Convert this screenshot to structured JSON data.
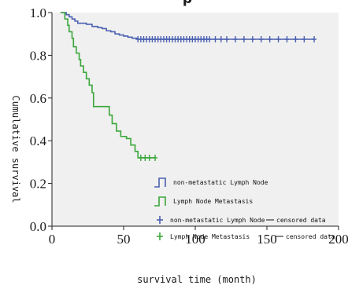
{
  "chart_data": {
    "type": "line",
    "title": "",
    "top_text_fragment": "p",
    "xlabel": "survival time (month)",
    "ylabel": "Cumulative survival",
    "xlim": [
      0,
      200
    ],
    "ylim": [
      0.0,
      1.0
    ],
    "x_ticks": [
      "0",
      "50",
      "100",
      "150",
      "200"
    ],
    "y_ticks": [
      "0.0",
      "0.2",
      "0.4",
      "0.6",
      "0.8",
      "1.0"
    ],
    "grid": false,
    "plot_background": "#f0f0f0",
    "legend_position": "bottom-right",
    "series": [
      {
        "name": "non-metastatic Lymph Node",
        "color": "#4a5fb0",
        "steps": [
          [
            6,
            1.0
          ],
          [
            10,
            0.99
          ],
          [
            12,
            0.98
          ],
          [
            14,
            0.97
          ],
          [
            16,
            0.96
          ],
          [
            18,
            0.95
          ],
          [
            24,
            0.945
          ],
          [
            28,
            0.935
          ],
          [
            32,
            0.93
          ],
          [
            35,
            0.925
          ],
          [
            38,
            0.915
          ],
          [
            41,
            0.91
          ],
          [
            44,
            0.9
          ],
          [
            47,
            0.895
          ],
          [
            50,
            0.89
          ],
          [
            53,
            0.885
          ],
          [
            56,
            0.88
          ],
          [
            60,
            0.875
          ],
          [
            183,
            0.875
          ]
        ],
        "censored": [
          60,
          62,
          64,
          66,
          68,
          70,
          72,
          74,
          76,
          78,
          80,
          82,
          84,
          86,
          88,
          90,
          92,
          94,
          96,
          98,
          100,
          102,
          104,
          106,
          108,
          110,
          114,
          118,
          122,
          128,
          134,
          140,
          146,
          152,
          158,
          164,
          170,
          176,
          183
        ]
      },
      {
        "name": "Lymph Node Metastasis",
        "color": "#3aa63a",
        "steps": [
          [
            6,
            1.0
          ],
          [
            9,
            0.97
          ],
          [
            11,
            0.94
          ],
          [
            12,
            0.91
          ],
          [
            14,
            0.88
          ],
          [
            15,
            0.84
          ],
          [
            17,
            0.81
          ],
          [
            19,
            0.78
          ],
          [
            20,
            0.75
          ],
          [
            22,
            0.72
          ],
          [
            24,
            0.69
          ],
          [
            26,
            0.66
          ],
          [
            28,
            0.625
          ],
          [
            29,
            0.56
          ],
          [
            40,
            0.52
          ],
          [
            42,
            0.48
          ],
          [
            45,
            0.445
          ],
          [
            48,
            0.42
          ],
          [
            52,
            0.41
          ],
          [
            55,
            0.38
          ],
          [
            58,
            0.35
          ],
          [
            60,
            0.32
          ],
          [
            72,
            0.32
          ]
        ],
        "censored": [
          62,
          65,
          68,
          72
        ]
      }
    ],
    "legend": {
      "lines": [
        {
          "label": "non-metastatic Lymph Node",
          "color": "#4a5fb0"
        },
        {
          "label": "Lymph Node Metastasis",
          "color": "#3aa63a"
        }
      ],
      "censored": [
        {
          "label": "non-metastatic Lymph Node",
          "suffix": "censored data",
          "color": "#4a5fb0"
        },
        {
          "label": "Lymph Node Metastasis",
          "suffix": "censored data",
          "color": "#3aa63a"
        }
      ]
    }
  }
}
